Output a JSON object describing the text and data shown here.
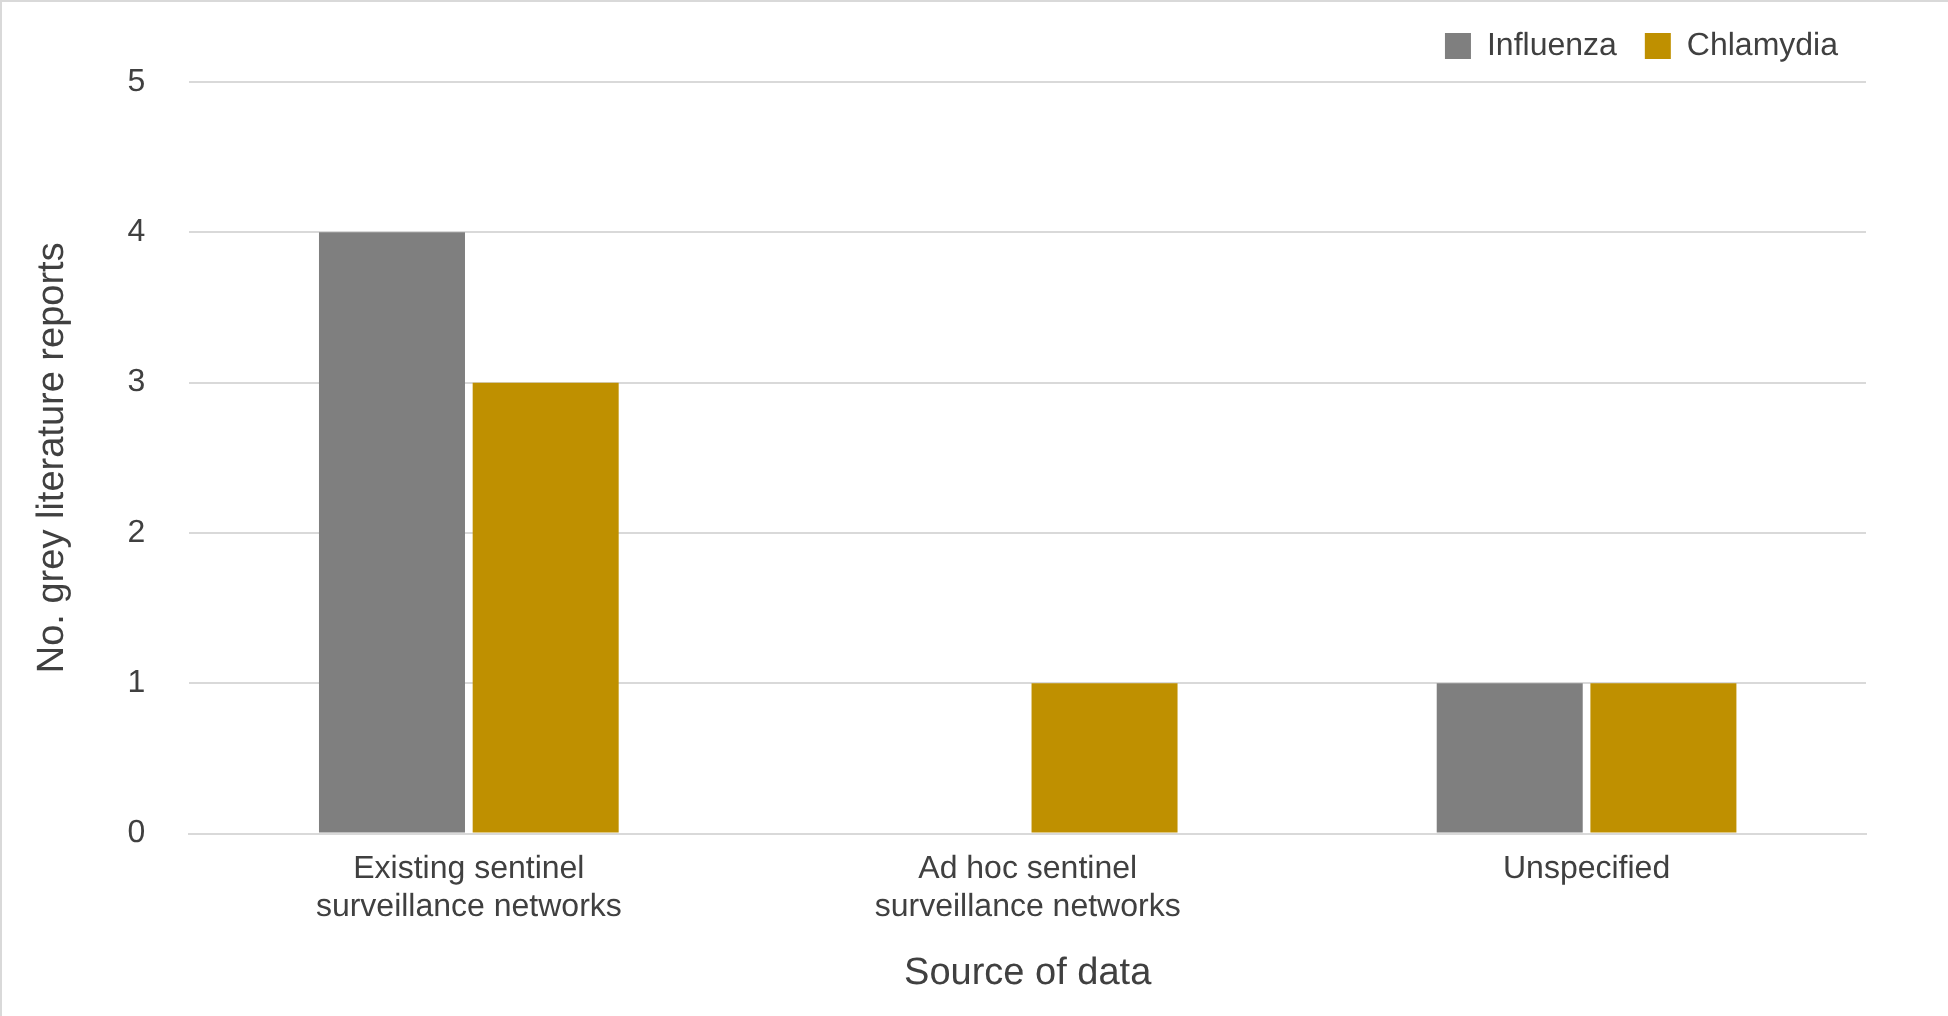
{
  "chart_data": {
    "type": "bar",
    "xlabel": "Source of data",
    "ylabel": "No. grey literature reports",
    "categories": [
      "Existing sentinel surveillance networks",
      "Ad hoc sentinel surveillance networks",
      "Unspecified"
    ],
    "series": [
      {
        "name": "Influenza",
        "color": "#7f7f7f",
        "values": [
          4,
          0,
          1
        ]
      },
      {
        "name": "Chlamydia",
        "color": "#bf9000",
        "values": [
          3,
          1,
          1
        ]
      }
    ],
    "ylim": [
      0,
      5
    ],
    "yticks": [
      0,
      1,
      2,
      3,
      4,
      5
    ],
    "grid": "y",
    "legend": "top right"
  }
}
